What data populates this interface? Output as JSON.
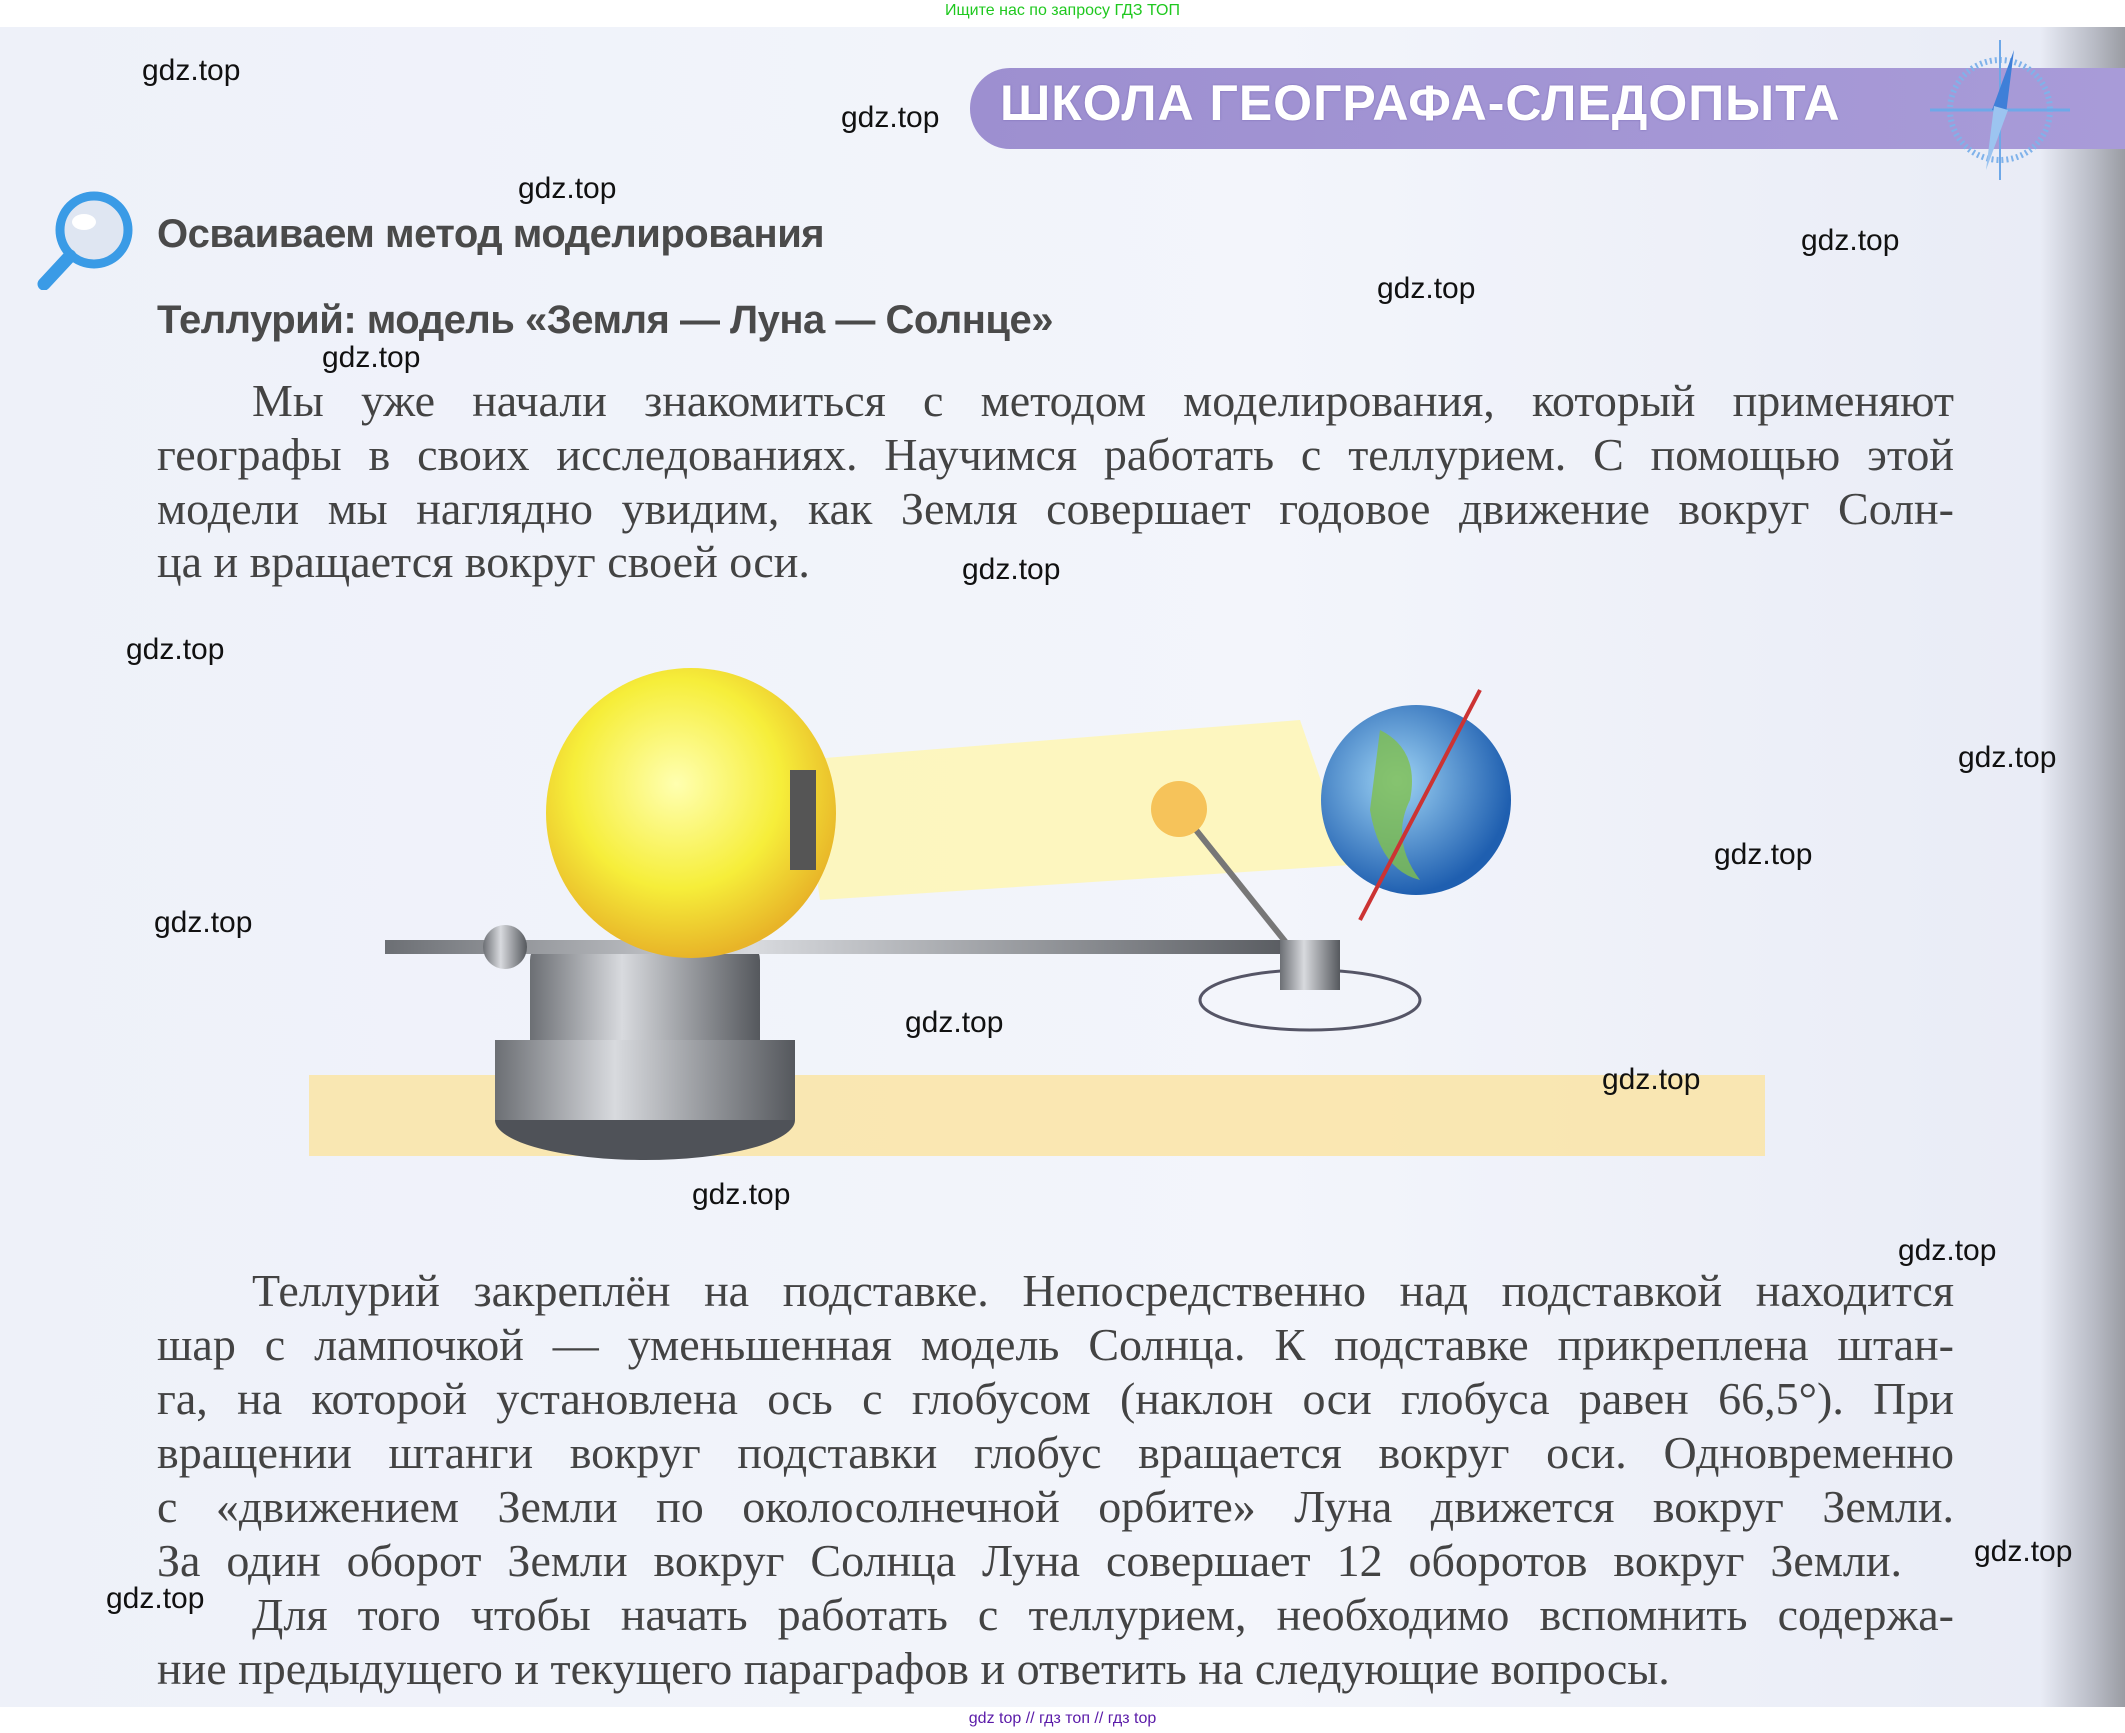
{
  "top_note": "Ищите нас по запросу ГДЗ ТОП",
  "bottom_note": "gdz top // гдз топ // гдз top",
  "banner": {
    "title": "ШКОЛА ГЕОГРАФА-СЛЕДОПЫТА",
    "icon": "compass-icon",
    "color": "#a195d5"
  },
  "section": {
    "icon": "magnifier-icon",
    "heading": "Осваиваем метод моделирования",
    "subheading": "Теллурий: модель «Земля — Луна — Солнце»"
  },
  "paragraph1": [
    "Мы уже начали знакомиться с методом моделирования, который применяют",
    "географы в своих исследованиях. Научимся работать с теллурием. С помощью этой",
    "модели мы наглядно увидим, как Земля совершает годовое движение вокруг Солн-",
    "ца и вращается вокруг своей оси."
  ],
  "paragraph2": [
    "Теллурий закреплён на подставке. Непосредственно над подставкой находится",
    "шар с лампочкой — уменьшенная модель Солнца. К подставке прикреплена штан-",
    "га, на которой установлена ось с глобусом (наклон оси глобуса равен 66,5°). При",
    "вращении штанги вокруг подставки глобус вращается вокруг оси. Одновременно",
    "с «движением Земли по околосолнечной орбите» Луна движется вокруг Земли.",
    "За один оборот Земли вокруг Солнца Луна совершает 12 оборотов вокруг Земли.",
    "Для того чтобы начать работать с теллурием, необходимо вспомнить содержа-",
    "ние предыдущего и текущего параграфов и ответить на следующие вопросы."
  ],
  "watermark": "gdz.top"
}
